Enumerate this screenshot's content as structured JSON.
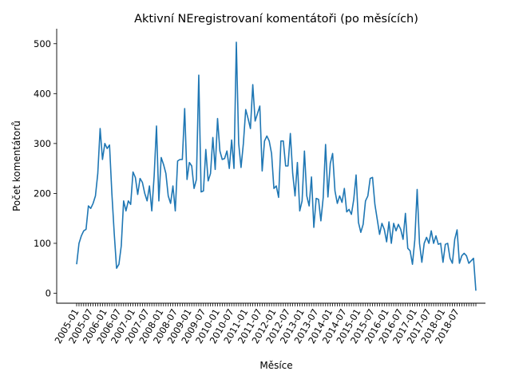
{
  "chart_data": {
    "type": "line",
    "title": "Aktivní NEregistrovaní komentátoři (po měsících)",
    "xlabel": "Měsíce",
    "ylabel": "Počet komentátorů",
    "ylim": [
      -20,
      530
    ],
    "yticks": [
      0,
      100,
      200,
      300,
      400,
      500
    ],
    "grid": false,
    "legend": "none",
    "line_color": "#1f77b4",
    "start_month": "2005-01",
    "tick_labels": [
      "2005-01",
      "2005-07",
      "2006-01",
      "2006-07",
      "2007-01",
      "2007-07",
      "2008-01",
      "2008-07",
      "2009-01",
      "2009-07",
      "2010-01",
      "2010-07",
      "2011-01",
      "2011-07",
      "2012-01",
      "2012-07",
      "2013-01",
      "2013-07",
      "2014-01",
      "2014-07",
      "2015-01",
      "2015-07",
      "2016-01",
      "2016-07",
      "2017-01",
      "2017-07",
      "2018-01",
      "2018-07"
    ],
    "values": [
      58,
      100,
      115,
      125,
      128,
      175,
      170,
      180,
      195,
      240,
      330,
      268,
      300,
      290,
      297,
      200,
      120,
      50,
      58,
      95,
      185,
      165,
      185,
      178,
      243,
      232,
      198,
      230,
      222,
      200,
      185,
      215,
      165,
      235,
      335,
      185,
      272,
      258,
      240,
      195,
      180,
      215,
      165,
      265,
      268,
      268,
      370,
      228,
      262,
      255,
      210,
      228,
      437,
      203,
      205,
      288,
      225,
      240,
      312,
      248,
      350,
      285,
      268,
      270,
      285,
      250,
      307,
      250,
      503,
      300,
      252,
      300,
      368,
      350,
      330,
      418,
      345,
      360,
      375,
      245,
      305,
      315,
      305,
      280,
      210,
      215,
      192,
      305,
      305,
      255,
      255,
      320,
      240,
      195,
      262,
      165,
      185,
      285,
      195,
      175,
      233,
      132,
      190,
      188,
      145,
      192,
      298,
      193,
      260,
      280,
      205,
      180,
      195,
      182,
      210,
      163,
      168,
      158,
      188,
      237,
      142,
      122,
      138,
      185,
      195,
      230,
      232,
      178,
      148,
      118,
      140,
      128,
      103,
      143,
      100,
      140,
      125,
      138,
      128,
      108,
      160,
      90,
      85,
      58,
      107,
      208,
      100,
      62,
      100,
      112,
      100,
      125,
      100,
      115,
      98,
      100,
      62,
      98,
      100,
      70,
      60,
      108,
      127,
      60,
      75,
      80,
      75,
      60,
      65,
      70,
      5
    ]
  }
}
